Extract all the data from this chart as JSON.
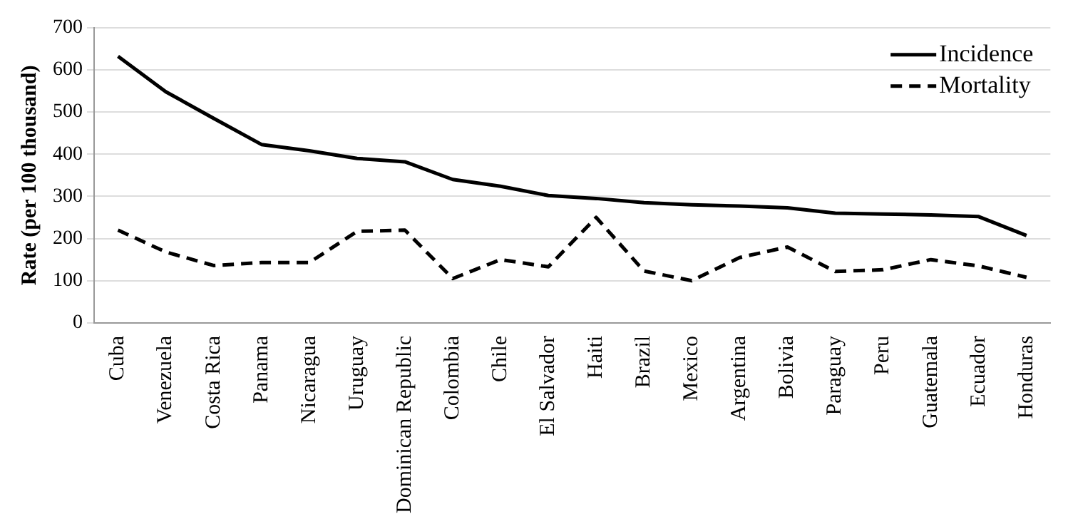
{
  "chart_data": {
    "type": "line",
    "ylabel": "Rate (per 100 thousand)",
    "categories": [
      "Cuba",
      "Venezuela",
      "Costa Rica",
      "Panama",
      "Nicaragua",
      "Uruguay",
      "Dominican Republic",
      "Colombia",
      "Chile",
      "El Salvador",
      "Haiti",
      "Brazil",
      "Mexico",
      "Argentina",
      "Bolivia",
      "Paraguay",
      "Peru",
      "Guatemala",
      "Ecuador",
      "Honduras"
    ],
    "series": [
      {
        "name": "Incidence",
        "color": "#000000",
        "line_style": "solid",
        "values": [
          632,
          548,
          485,
          423,
          408,
          390,
          382,
          340,
          324,
          302,
          295,
          285,
          280,
          277,
          273,
          260,
          258,
          256,
          252,
          207
        ]
      },
      {
        "name": "Mortality",
        "color": "#000000",
        "line_style": "dashed",
        "values": [
          220,
          168,
          136,
          143,
          143,
          217,
          220,
          105,
          150,
          133,
          250,
          123,
          100,
          155,
          180,
          122,
          126,
          150,
          135,
          108
        ]
      }
    ],
    "ylim": [
      0,
      700
    ],
    "yticks": [
      0,
      100,
      200,
      300,
      400,
      500,
      600,
      700
    ],
    "grid": "y",
    "legend": "top right",
    "marker": "none"
  }
}
